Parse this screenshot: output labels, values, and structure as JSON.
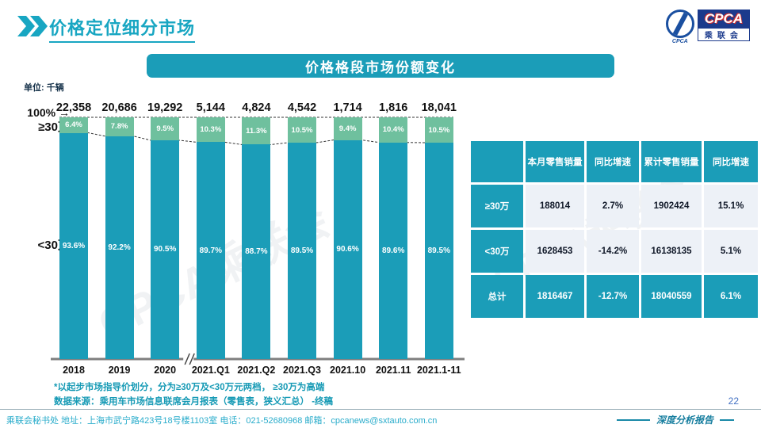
{
  "colors": {
    "teal": "#1b9db8",
    "green": "#6fc09e",
    "title_teal": "#18a6c2",
    "page_num_blue": "#4472c4"
  },
  "header": {
    "title": "价格定位细分市场",
    "logo": {
      "mark_caption": "CPCA",
      "box_text": "CPCA",
      "box_sub": "乘联会"
    }
  },
  "section_title": "价格格段市场份额变化",
  "unit_label": "单位: 千辆",
  "watermark": "CPCA乘联会",
  "chart_data": {
    "type": "bar",
    "subtype": "100%-stacked",
    "title": "价格格段市场份额变化",
    "unit": "单位: 千辆",
    "y_top_label": "100%",
    "arrow_icon": "→",
    "categories": [
      "2018",
      "2019",
      "2020",
      "2021.Q1",
      "2021.Q2",
      "2021.Q3",
      "2021.10",
      "2021.11",
      "2021.1-11"
    ],
    "totals": [
      "22,358",
      "20,686",
      "19,292",
      "5,144",
      "4,824",
      "4,542",
      "1,714",
      "1,816",
      "18,041"
    ],
    "series": [
      {
        "name": "≥30万",
        "color": "#6fc09e",
        "values": [
          6.4,
          7.8,
          9.5,
          10.3,
          11.3,
          10.5,
          9.4,
          10.4,
          10.5
        ]
      },
      {
        "name": "<30万",
        "color": "#1b9db8",
        "values": [
          93.6,
          92.2,
          90.5,
          89.7,
          88.7,
          89.5,
          90.6,
          89.6,
          89.5
        ]
      }
    ],
    "value_suffix": "%",
    "axis_break_between": [
      "2020",
      "2021.Q1"
    ],
    "legend_position": "left-of-bars",
    "grid": false,
    "ylim": [
      0,
      100
    ]
  },
  "table": {
    "headers": [
      "",
      "本月零售销量",
      "同比增速",
      "累计零售销量",
      "同比增速"
    ],
    "rows": [
      {
        "label": "≥30万",
        "cells": [
          "188014",
          "2.7%",
          "1902424",
          "15.1%"
        ],
        "emphasis": false
      },
      {
        "label": "<30万",
        "cells": [
          "1628453",
          "-14.2%",
          "16138135",
          "5.1%"
        ],
        "emphasis": false
      },
      {
        "label": "总计",
        "cells": [
          "1816467",
          "-12.7%",
          "18040559",
          "6.1%"
        ],
        "emphasis": true
      }
    ]
  },
  "footnotes": [
    "*以起步市场指导价划分，分为≥30万及<30万元两档， ≥30万为高端",
    "数据来源：乘用车市场信息联席会月报表（零售表，狭义汇总） -终稿"
  ],
  "footer": {
    "left": "乘联会秘书处   地址：上海市武宁路423号18号楼1103室  电话：021-52680968   邮箱：cpcanews@sxtauto.com.cn",
    "page": "22",
    "report": "深度分析报告"
  }
}
